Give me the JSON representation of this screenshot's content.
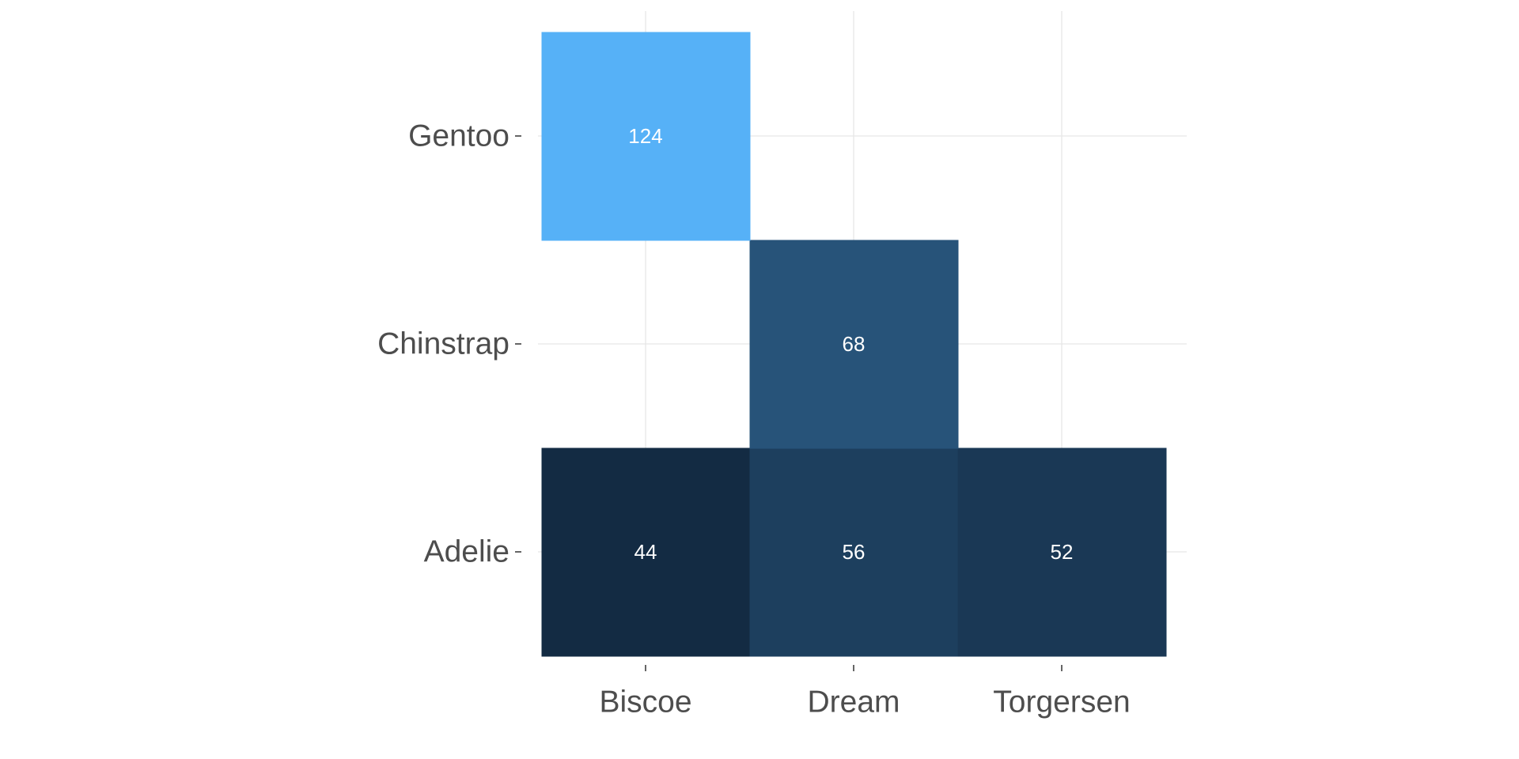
{
  "chart_data": {
    "type": "heatmap",
    "title": "",
    "xlabel": "",
    "ylabel": "",
    "x_categories": [
      "Biscoe",
      "Dream",
      "Torgersen"
    ],
    "y_categories": [
      "Adelie",
      "Chinstrap",
      "Gentoo"
    ],
    "cells": [
      {
        "x": "Biscoe",
        "y": "Adelie",
        "value": 44
      },
      {
        "x": "Dream",
        "y": "Adelie",
        "value": 56
      },
      {
        "x": "Torgersen",
        "y": "Adelie",
        "value": 52
      },
      {
        "x": "Dream",
        "y": "Chinstrap",
        "value": 68
      },
      {
        "x": "Biscoe",
        "y": "Gentoo",
        "value": 124
      }
    ],
    "color_scale": {
      "low": "#132B43",
      "high": "#56B1F7"
    },
    "value_range": [
      44,
      124
    ],
    "grid": true,
    "legend": "none"
  }
}
